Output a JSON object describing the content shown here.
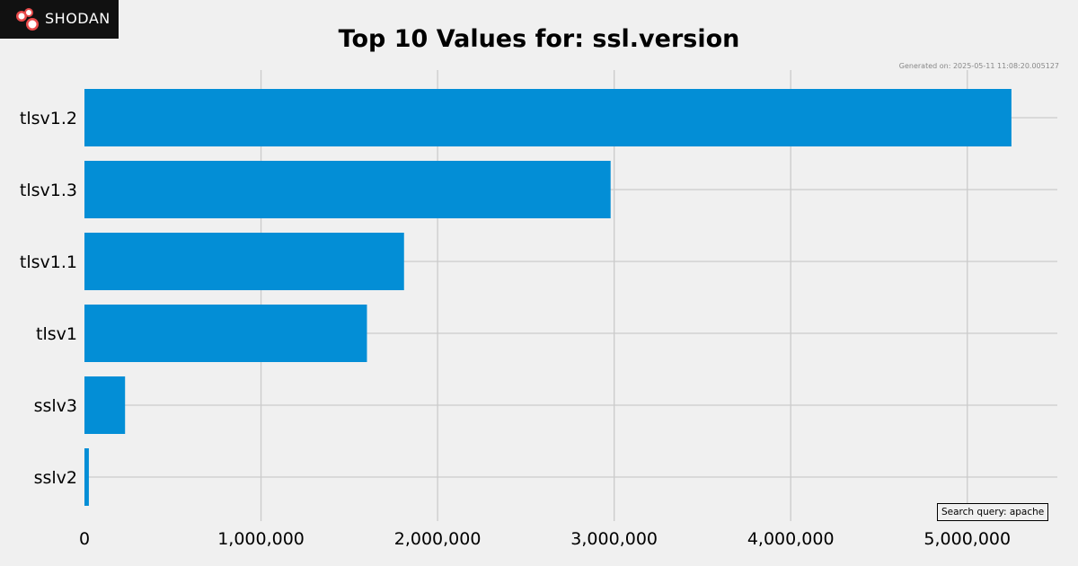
{
  "logo": {
    "text": "SHODAN"
  },
  "header": {
    "generated": "Generated on: 2025-05-11 11:08:20.005127"
  },
  "footer": {
    "query": "Search query: apache"
  },
  "colors": {
    "bar": "#038ed6",
    "grid": "#cbcbcb",
    "background": "#f0f0f0"
  },
  "chart_data": {
    "type": "bar",
    "orientation": "horizontal",
    "title": "Top 10 Values for: ssl.version",
    "categories": [
      "tlsv1.2",
      "tlsv1.3",
      "tlsv1.1",
      "tlsv1",
      "sslv3",
      "sslv2"
    ],
    "values": [
      5250000,
      2980000,
      1810000,
      1600000,
      230000,
      25000
    ],
    "xticks": [
      0,
      1000000,
      2000000,
      3000000,
      4000000,
      5000000
    ],
    "xtick_labels": [
      "0",
      "1,000,000",
      "2,000,000",
      "3,000,000",
      "4,000,000",
      "5,000,000"
    ],
    "xlim": [
      0,
      5510000
    ],
    "grid": true
  }
}
